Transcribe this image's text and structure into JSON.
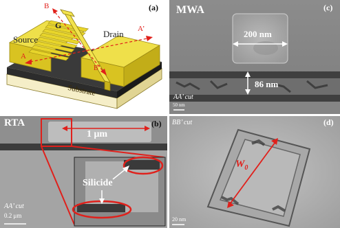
{
  "panel_a": {
    "letter": "(a)",
    "labels": {
      "b": "B",
      "g": "G",
      "drain": "Drain",
      "source": "Source",
      "a_prime": "A’",
      "a": "A",
      "b_prime": "B’",
      "substrate": "Substrate"
    }
  },
  "panel_c": {
    "letter": "(c)",
    "title": "MWA",
    "dim_width": "200 nm",
    "dim_height": "86 nm",
    "cut": "AA’ cut",
    "scale": "50 nm"
  },
  "panel_b": {
    "letter": "(b)",
    "title": "RTA",
    "dim_width": "1 μm",
    "silicide": "Silicide",
    "cut": "AA’ cut",
    "scale": "0.2 μm"
  },
  "panel_d": {
    "letter": "(d)",
    "cut": "BB’ cut",
    "w0_main": "W",
    "w0_sub": "0",
    "scale": "20 nm"
  },
  "colors": {
    "accent_red": "#e0201b",
    "gold": "#e8d21e",
    "gold_dark": "#b89a10"
  }
}
